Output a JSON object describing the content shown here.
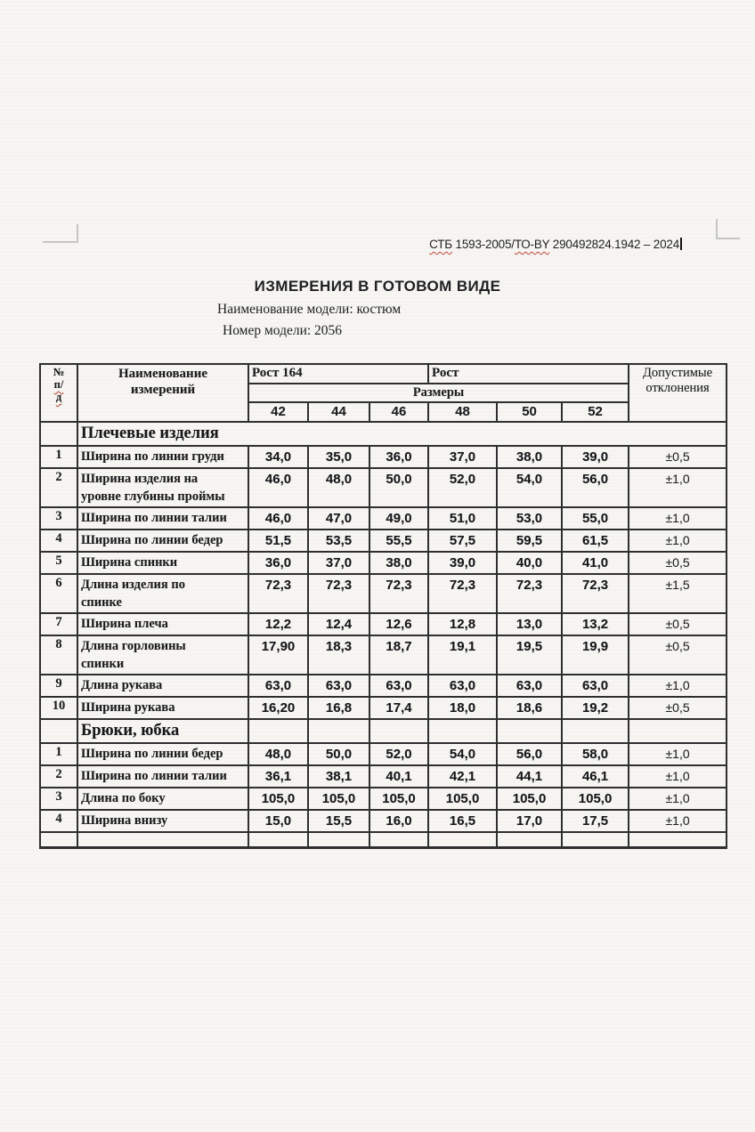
{
  "document": {
    "standard_line_parts": {
      "stb": "СТБ",
      "mid": " 1593-2005/",
      "to_by": "ТО-BY",
      "rest": " 290492824.1942 – 2024"
    },
    "title": "ИЗМЕРЕНИЯ В ГОТОВОМ ВИДЕ",
    "model_name": "Наименование модели: костюм",
    "model_number": "Номер модели: 2056"
  },
  "table": {
    "header": {
      "num_lines": [
        "№",
        "п/",
        "д"
      ],
      "name_lines": [
        "Наименование",
        "измерений"
      ],
      "rost_left": "Рост  164",
      "rost_right": "Рост",
      "sizes_label": "Размеры",
      "sizes": [
        "42",
        "44",
        "46",
        "48",
        "50",
        "52"
      ],
      "tolerance": "Допустимые отклонения"
    },
    "sections": [
      {
        "title": "Плечевые изделия",
        "rows": [
          {
            "num": "1",
            "name": "Ширина по линии груди",
            "values": [
              "34,0",
              "35,0",
              "36,0",
              "37,0",
              "38,0",
              "39,0"
            ],
            "tolerance": "±0,5"
          },
          {
            "num": "2",
            "name": "Ширина изделия на\nуровне глубины проймы",
            "values": [
              "46,0",
              "48,0",
              "50,0",
              "52,0",
              "54,0",
              "56,0"
            ],
            "tolerance": "±1,0"
          },
          {
            "num": "3",
            "name": "Ширина по линии талии",
            "values": [
              "46,0",
              "47,0",
              "49,0",
              "51,0",
              "53,0",
              "55,0"
            ],
            "tolerance": "±1,0"
          },
          {
            "num": "4",
            "name": "Ширина по линии бедер",
            "values": [
              "51,5",
              "53,5",
              "55,5",
              "57,5",
              "59,5",
              "61,5"
            ],
            "tolerance": "±1,0"
          },
          {
            "num": "5",
            "name": "Ширина спинки",
            "values": [
              "36,0",
              "37,0",
              "38,0",
              "39,0",
              "40,0",
              "41,0"
            ],
            "tolerance": "±0,5"
          },
          {
            "num": "6",
            "name": "Длина изделия по\nспинке",
            "values": [
              "72,3",
              "72,3",
              "72,3",
              "72,3",
              "72,3",
              "72,3"
            ],
            "tolerance": "±1,5"
          },
          {
            "num": "7",
            "name": "Ширина плеча",
            "values": [
              "12,2",
              "12,4",
              "12,6",
              "12,8",
              "13,0",
              "13,2"
            ],
            "tolerance": "±0,5"
          },
          {
            "num": "8",
            "name": "Длина горловины\nспинки",
            "values": [
              "17,90",
              "18,3",
              "18,7",
              "19,1",
              "19,5",
              "19,9"
            ],
            "tolerance": "±0,5"
          },
          {
            "num": "9",
            "name": "Длина рукава",
            "values": [
              "63,0",
              "63,0",
              "63,0",
              "63,0",
              "63,0",
              "63,0"
            ],
            "tolerance": "±1,0"
          },
          {
            "num": "10",
            "name": "Ширина рукава",
            "values": [
              "16,20",
              "16,8",
              "17,4",
              "18,0",
              "18,6",
              "19,2"
            ],
            "tolerance": "±0,5"
          }
        ]
      },
      {
        "title": "Брюки, юбка",
        "rows": [
          {
            "num": "1",
            "name": "Ширина по линии бедер",
            "values": [
              "48,0",
              "50,0",
              "52,0",
              "54,0",
              "56,0",
              "58,0"
            ],
            "tolerance": "±1,0"
          },
          {
            "num": "2",
            "name": "Ширина по линии талии",
            "values": [
              "36,1",
              "38,1",
              "40,1",
              "42,1",
              "44,1",
              "46,1"
            ],
            "tolerance": "±1,0"
          },
          {
            "num": "3",
            "name": "Длина по боку",
            "values": [
              "105,0",
              "105,0",
              "105,0",
              "105,0",
              "105,0",
              "105,0"
            ],
            "tolerance": "±1,0"
          },
          {
            "num": "4",
            "name": "Ширина внизу",
            "values": [
              "15,0",
              "15,5",
              "16,0",
              "16,5",
              "17,0",
              "17,5"
            ],
            "tolerance": "±1,0"
          }
        ]
      }
    ]
  },
  "colors": {
    "page_bg": "#f7f6f3",
    "table_border": "#2e2e30",
    "text": "#1b1b1d",
    "spellcheck_squiggle": "#c4453a"
  }
}
